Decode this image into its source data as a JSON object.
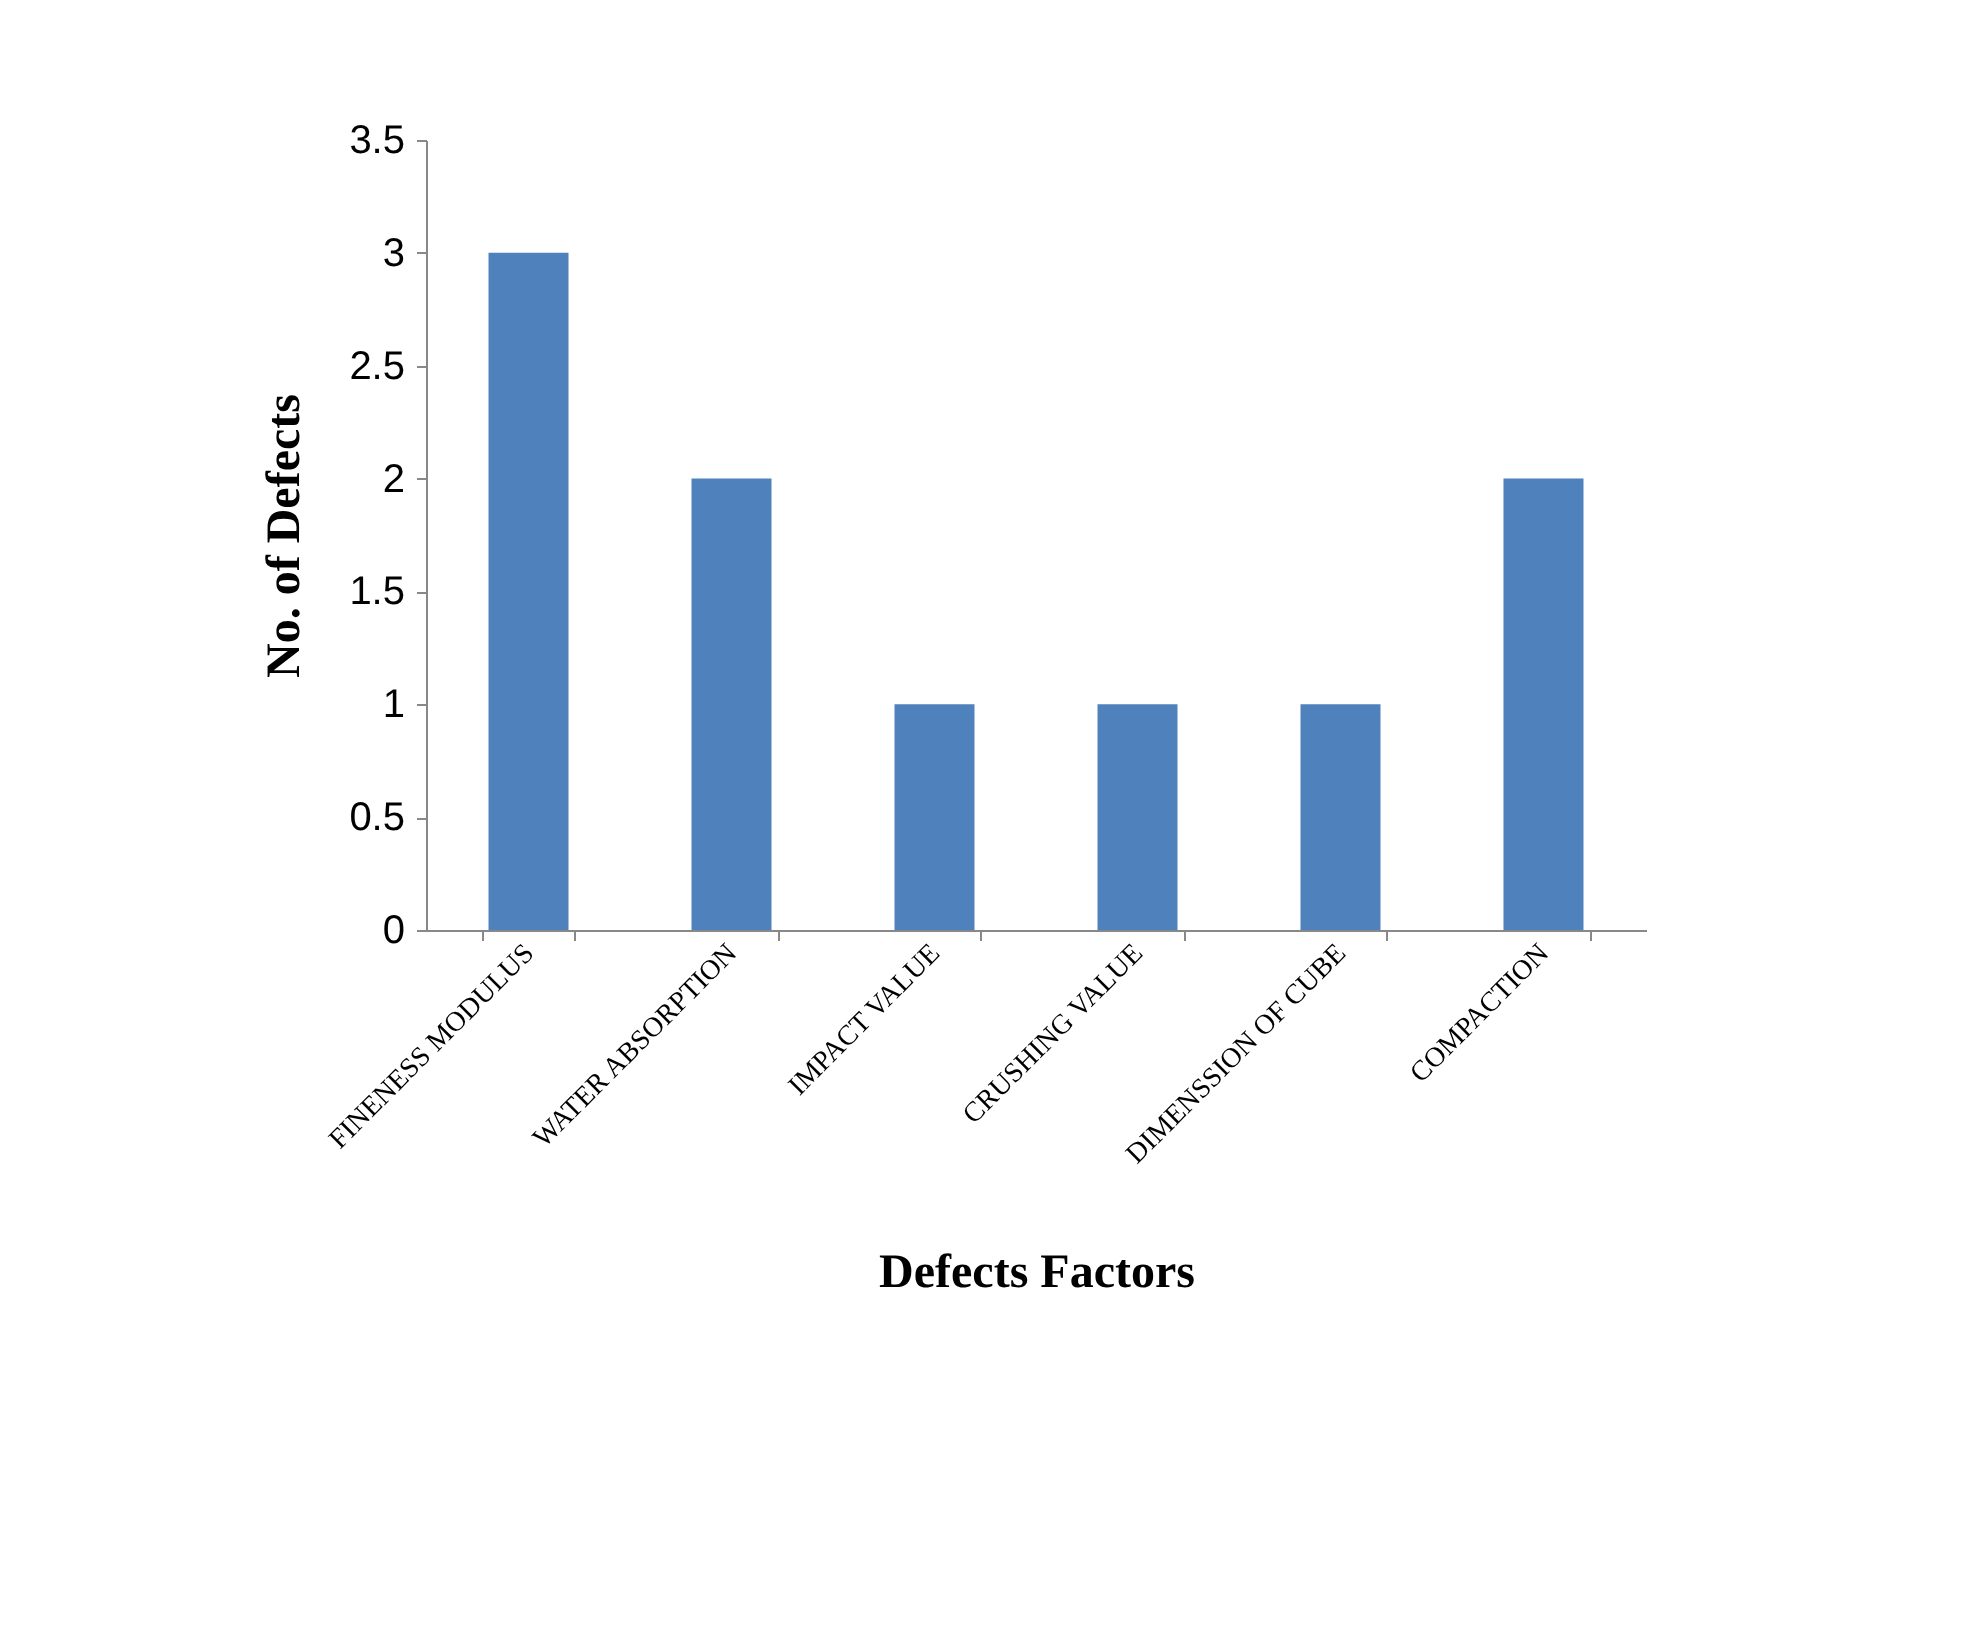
{
  "chart_data": {
    "type": "bar",
    "xlabel": "Defects Factors",
    "ylabel": "No. of Defects",
    "categories": [
      "FINENESS MODULUS",
      "WATER ABSORPTION",
      "IMPACT VALUE",
      "CRUSHING VALUE",
      "DIMENSSION OF CUBE",
      "COMPACTION"
    ],
    "values": [
      3,
      2,
      1,
      1,
      1,
      2
    ],
    "color": "#4f81bd",
    "ylim": [
      0,
      3.5
    ],
    "yticks": [
      0,
      0.5,
      1,
      1.5,
      2,
      2.5,
      3,
      3.5
    ],
    "grid": false,
    "legend": false
  }
}
